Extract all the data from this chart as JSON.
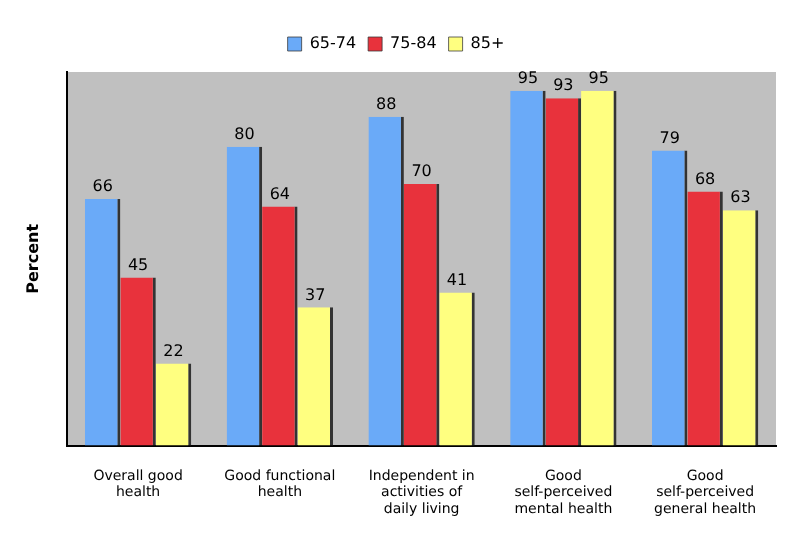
{
  "chart_data": {
    "type": "bar",
    "ylabel": "Percent",
    "categories": [
      "Overall good health",
      "Good functional health",
      "Independent in activities of daily living",
      "Good self-perceived mental health",
      "Good self-perceived general health"
    ],
    "series": [
      {
        "name": "65-74",
        "color": "#6aaaf8",
        "values": [
          66,
          80,
          88,
          95,
          79
        ]
      },
      {
        "name": "75-84",
        "color": "#e8323c",
        "values": [
          45,
          64,
          70,
          93,
          68
        ]
      },
      {
        "name": "85+",
        "color": "#ffff80",
        "values": [
          22,
          37,
          41,
          95,
          63
        ]
      }
    ],
    "ylim": [
      0,
      100
    ],
    "tick_labels": "x",
    "data_labels": true,
    "legend": "top",
    "grid": false
  }
}
